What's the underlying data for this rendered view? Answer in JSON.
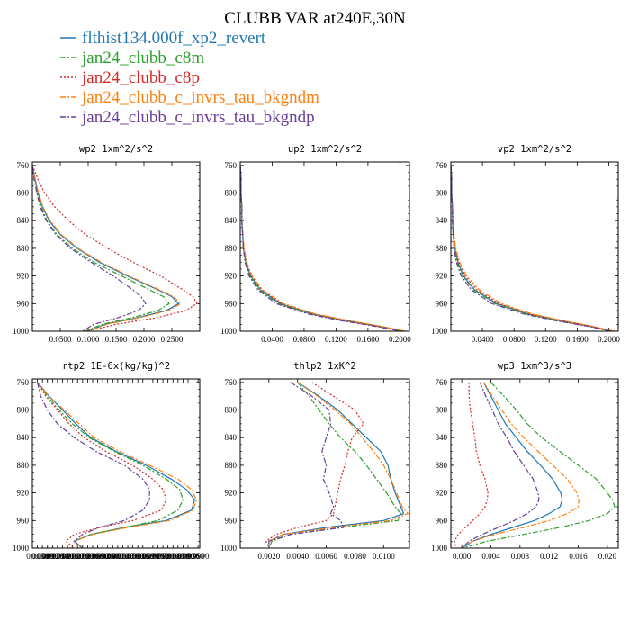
{
  "figure": {
    "title": "CLUBB VAR at240E,30N",
    "legend": [
      {
        "label": "flthist134.000f_xp2_revert",
        "color": "#1f77b4",
        "dash": ""
      },
      {
        "label": "jan24_clubb_c8m",
        "color": "#2ca02c",
        "dash": "6,2,2,2"
      },
      {
        "label": "jan24_clubb_c8p",
        "color": "#d62728",
        "dash": "2,2"
      },
      {
        "label": "jan24_clubb_c_invrs_tau_bkgndm",
        "color": "#ff7f0e",
        "dash": "6,2,2,2"
      },
      {
        "label": "jan24_clubb_c_invrs_tau_bkgndp",
        "color": "#6a3d9a",
        "dash": "6,2,2,2"
      }
    ]
  },
  "chart_data": [
    {
      "type": "line",
      "title": "wp2  1xm^2/s^2",
      "x_ticks": [
        "0.0500",
        "0.1000",
        "0.1500",
        "0.2000",
        "0.2500"
      ],
      "x_tick_values": [
        0.05,
        0.1,
        0.15,
        0.2,
        0.25
      ],
      "xlim": [
        0.0,
        0.3
      ],
      "y_ticks": [
        "760",
        "800",
        "840",
        "880",
        "920",
        "960",
        "1000"
      ],
      "ylim": [
        1000,
        755
      ],
      "y": [
        760,
        780,
        800,
        820,
        840,
        860,
        880,
        900,
        920,
        940,
        950,
        960,
        970,
        980,
        990,
        1000
      ],
      "series": [
        {
          "name": "flthist134.000f_xp2_revert",
          "x": [
            0.0,
            0.005,
            0.01,
            0.018,
            0.03,
            0.05,
            0.08,
            0.12,
            0.17,
            0.225,
            0.25,
            0.262,
            0.24,
            0.19,
            0.13,
            0.1
          ]
        },
        {
          "name": "jan24_clubb_c8m",
          "x": [
            0.0,
            0.004,
            0.009,
            0.016,
            0.026,
            0.044,
            0.072,
            0.11,
            0.16,
            0.21,
            0.235,
            0.245,
            0.225,
            0.18,
            0.125,
            0.095
          ]
        },
        {
          "name": "jan24_clubb_c8p",
          "x": [
            0.0,
            0.01,
            0.022,
            0.04,
            0.065,
            0.095,
            0.135,
            0.18,
            0.23,
            0.27,
            0.288,
            0.295,
            0.275,
            0.225,
            0.15,
            0.1
          ]
        },
        {
          "name": "jan24_clubb_c_invrs_tau_bkgndm",
          "x": [
            0.0,
            0.005,
            0.011,
            0.019,
            0.032,
            0.052,
            0.082,
            0.123,
            0.173,
            0.228,
            0.253,
            0.266,
            0.244,
            0.194,
            0.133,
            0.1
          ]
        },
        {
          "name": "jan24_clubb_c_invrs_tau_bkgndp",
          "x": [
            0.0,
            0.003,
            0.008,
            0.014,
            0.025,
            0.042,
            0.068,
            0.105,
            0.145,
            0.18,
            0.195,
            0.203,
            0.19,
            0.155,
            0.11,
            0.09
          ]
        }
      ]
    },
    {
      "type": "line",
      "title": "up2  1xm^2/s^2",
      "x_ticks": [
        "0.0400",
        "0.0800",
        "0.1200",
        "0.1600",
        "0.2000"
      ],
      "x_tick_values": [
        0.04,
        0.08,
        0.12,
        0.16,
        0.2
      ],
      "xlim": [
        0.0,
        0.212
      ],
      "y_ticks": [
        "760",
        "800",
        "840",
        "880",
        "920",
        "960",
        "1000"
      ],
      "ylim": [
        1000,
        755
      ],
      "y": [
        760,
        780,
        800,
        820,
        840,
        860,
        880,
        900,
        920,
        940,
        960,
        975,
        985,
        993,
        1000
      ],
      "series": [
        {
          "name": "flthist134.000f_xp2_revert",
          "x": [
            0.0,
            0.001,
            0.001,
            0.002,
            0.002,
            0.003,
            0.004,
            0.007,
            0.013,
            0.025,
            0.05,
            0.09,
            0.135,
            0.175,
            0.205
          ]
        },
        {
          "name": "jan24_clubb_c8m",
          "x": [
            0.0,
            0.001,
            0.001,
            0.002,
            0.002,
            0.003,
            0.004,
            0.007,
            0.012,
            0.024,
            0.048,
            0.088,
            0.132,
            0.172,
            0.203
          ]
        },
        {
          "name": "jan24_clubb_c8p",
          "x": [
            0.0,
            0.001,
            0.001,
            0.002,
            0.002,
            0.003,
            0.004,
            0.008,
            0.014,
            0.027,
            0.052,
            0.092,
            0.137,
            0.176,
            0.206
          ]
        },
        {
          "name": "jan24_clubb_c_invrs_tau_bkgndm",
          "x": [
            0.0,
            0.001,
            0.001,
            0.002,
            0.002,
            0.003,
            0.005,
            0.008,
            0.015,
            0.028,
            0.054,
            0.094,
            0.138,
            0.177,
            0.207
          ]
        },
        {
          "name": "jan24_clubb_c_invrs_tau_bkgndp",
          "x": [
            0.0,
            0.001,
            0.001,
            0.002,
            0.002,
            0.003,
            0.004,
            0.006,
            0.011,
            0.022,
            0.045,
            0.085,
            0.128,
            0.17,
            0.201
          ]
        }
      ]
    },
    {
      "type": "line",
      "title": "vp2  1xm^2/s^2",
      "x_ticks": [
        "0.0400",
        "0.0800",
        "0.1200",
        "0.1600",
        "0.2000"
      ],
      "x_tick_values": [
        0.04,
        0.08,
        0.12,
        0.16,
        0.2
      ],
      "xlim": [
        0.0,
        0.212
      ],
      "y_ticks": [
        "760",
        "800",
        "840",
        "880",
        "920",
        "960",
        "1000"
      ],
      "ylim": [
        1000,
        755
      ],
      "y": [
        760,
        780,
        800,
        820,
        840,
        860,
        880,
        900,
        920,
        940,
        960,
        975,
        985,
        993,
        1000
      ],
      "series": [
        {
          "name": "flthist134.000f_xp2_revert",
          "x": [
            0.0,
            0.001,
            0.001,
            0.002,
            0.002,
            0.003,
            0.005,
            0.009,
            0.016,
            0.03,
            0.058,
            0.098,
            0.14,
            0.178,
            0.205
          ]
        },
        {
          "name": "jan24_clubb_c8m",
          "x": [
            0.0,
            0.001,
            0.001,
            0.002,
            0.002,
            0.003,
            0.005,
            0.008,
            0.015,
            0.029,
            0.056,
            0.096,
            0.138,
            0.176,
            0.204
          ]
        },
        {
          "name": "jan24_clubb_c8p",
          "x": [
            0.0,
            0.001,
            0.001,
            0.002,
            0.003,
            0.004,
            0.006,
            0.01,
            0.018,
            0.033,
            0.061,
            0.1,
            0.142,
            0.179,
            0.206
          ]
        },
        {
          "name": "jan24_clubb_c_invrs_tau_bkgndm",
          "x": [
            0.0,
            0.001,
            0.001,
            0.002,
            0.003,
            0.004,
            0.006,
            0.011,
            0.02,
            0.036,
            0.064,
            0.103,
            0.144,
            0.18,
            0.207
          ]
        },
        {
          "name": "jan24_clubb_c_invrs_tau_bkgndp",
          "x": [
            0.0,
            0.001,
            0.001,
            0.002,
            0.002,
            0.003,
            0.004,
            0.007,
            0.013,
            0.026,
            0.052,
            0.092,
            0.134,
            0.174,
            0.202
          ]
        }
      ]
    },
    {
      "type": "line",
      "title": "rtp2  1E-6x(kg/kg)^2",
      "x_ticks": [
        "0.0030",
        "0.0060",
        "0.0090",
        "0.0120",
        "0.0150",
        "0.0180",
        "0.0210",
        "0.0240",
        "0.0270",
        "0.0300",
        "0.0330",
        "0.0360",
        "0.0390",
        "0.0420",
        "0.0450",
        "0.0480",
        "0.0510",
        "0.0540",
        "0.0570",
        "0.0600",
        "0.0630",
        "0.0660",
        "0.0690",
        "0.0720",
        "0.0750",
        "0.0780",
        "0.0810",
        "0.0840",
        "0.0870",
        "0.0900",
        "0.0930",
        "0.0960",
        "0.0990"
      ],
      "x_tick_values": [
        0.003,
        0.006,
        0.009,
        0.012,
        0.015,
        0.018,
        0.021,
        0.024,
        0.027,
        0.03,
        0.033,
        0.036,
        0.039,
        0.042,
        0.045,
        0.048,
        0.051,
        0.054,
        0.057,
        0.06,
        0.063,
        0.066,
        0.069,
        0.072,
        0.075,
        0.078,
        0.081,
        0.084,
        0.087,
        0.09,
        0.093,
        0.096,
        0.099
      ],
      "xlim": [
        0.0,
        0.1
      ],
      "y_ticks": [
        "760",
        "800",
        "840",
        "880",
        "920",
        "960",
        "1000"
      ],
      "ylim": [
        1000,
        755
      ],
      "y": [
        760,
        780,
        800,
        820,
        840,
        860,
        880,
        900,
        915,
        930,
        945,
        960,
        970,
        980,
        990,
        1000
      ],
      "series": [
        {
          "name": "flthist134.000f_xp2_revert",
          "x": [
            0.003,
            0.01,
            0.018,
            0.026,
            0.035,
            0.05,
            0.068,
            0.083,
            0.092,
            0.097,
            0.095,
            0.08,
            0.055,
            0.035,
            0.025,
            0.03
          ]
        },
        {
          "name": "jan24_clubb_c8m",
          "x": [
            0.003,
            0.009,
            0.016,
            0.024,
            0.034,
            0.049,
            0.066,
            0.08,
            0.088,
            0.09,
            0.087,
            0.075,
            0.055,
            0.035,
            0.025,
            0.03
          ]
        },
        {
          "name": "jan24_clubb_c8p",
          "x": [
            0.003,
            0.008,
            0.015,
            0.022,
            0.031,
            0.044,
            0.06,
            0.072,
            0.078,
            0.08,
            0.077,
            0.06,
            0.04,
            0.025,
            0.02,
            0.025
          ]
        },
        {
          "name": "jan24_clubb_c_invrs_tau_bkgndm",
          "x": [
            0.003,
            0.01,
            0.019,
            0.028,
            0.037,
            0.052,
            0.07,
            0.087,
            0.095,
            0.098,
            0.096,
            0.082,
            0.057,
            0.036,
            0.025,
            0.03
          ]
        },
        {
          "name": "jan24_clubb_c_invrs_tau_bkgndp",
          "x": [
            0.003,
            0.005,
            0.009,
            0.015,
            0.025,
            0.038,
            0.055,
            0.066,
            0.07,
            0.07,
            0.066,
            0.055,
            0.04,
            0.03,
            0.025,
            0.03
          ]
        }
      ]
    },
    {
      "type": "line",
      "title": "thlp2  1xK^2",
      "x_ticks": [
        "0.0020",
        "0.0040",
        "0.0060",
        "0.0080",
        "0.0100"
      ],
      "x_tick_values": [
        0.002,
        0.004,
        0.006,
        0.008,
        0.01
      ],
      "xlim": [
        0.0,
        0.0118
      ],
      "y_ticks": [
        "760",
        "800",
        "840",
        "880",
        "920",
        "960",
        "1000"
      ],
      "ylim": [
        1000,
        755
      ],
      "y": [
        760,
        780,
        800,
        820,
        840,
        860,
        880,
        900,
        920,
        940,
        950,
        960,
        970,
        980,
        990,
        1000
      ],
      "series": [
        {
          "name": "flthist134.000f_xp2_revert",
          "x": [
            0.004,
            0.0055,
            0.0068,
            0.0078,
            0.0088,
            0.0098,
            0.0103,
            0.0105,
            0.0108,
            0.0112,
            0.0114,
            0.01,
            0.006,
            0.003,
            0.002,
            0.002
          ]
        },
        {
          "name": "jan24_clubb_c8m",
          "x": [
            0.004,
            0.0048,
            0.0055,
            0.0062,
            0.007,
            0.008,
            0.0088,
            0.0095,
            0.0102,
            0.0108,
            0.0112,
            0.011,
            0.007,
            0.0035,
            0.0022,
            0.002
          ]
        },
        {
          "name": "jan24_clubb_c8p",
          "x": [
            0.005,
            0.0065,
            0.008,
            0.0086,
            0.0078,
            0.0075,
            0.0073,
            0.007,
            0.0068,
            0.0066,
            0.0065,
            0.006,
            0.004,
            0.0025,
            0.0018,
            0.002
          ]
        },
        {
          "name": "jan24_clubb_c_invrs_tau_bkgndm",
          "x": [
            0.004,
            0.0054,
            0.0066,
            0.0077,
            0.0085,
            0.0093,
            0.01,
            0.0105,
            0.0109,
            0.0113,
            0.0117,
            0.0105,
            0.0065,
            0.003,
            0.002,
            0.002
          ]
        },
        {
          "name": "jan24_clubb_c_invrs_tau_bkgndp",
          "x": [
            0.0035,
            0.005,
            0.0062,
            0.0063,
            0.006,
            0.0057,
            0.006,
            0.0058,
            0.0062,
            0.0065,
            0.0063,
            0.007,
            0.0072,
            0.0035,
            0.002,
            0.002
          ]
        }
      ]
    },
    {
      "type": "line",
      "title": "wp3  1xm^3/s^3",
      "x_ticks": [
        "0.000",
        "0.004",
        "0.008",
        "0.012",
        "0.016",
        "0.020"
      ],
      "x_tick_values": [
        0.0,
        0.004,
        0.008,
        0.012,
        0.016,
        0.02
      ],
      "xlim": [
        -0.0015,
        0.0215
      ],
      "y_ticks": [
        "760",
        "800",
        "840",
        "880",
        "920",
        "960",
        "1000"
      ],
      "ylim": [
        1000,
        755
      ],
      "y": [
        760,
        780,
        800,
        820,
        840,
        860,
        880,
        900,
        920,
        930,
        940,
        950,
        960,
        970,
        980,
        990,
        1000
      ],
      "series": [
        {
          "name": "flthist134.000f_xp2_revert",
          "x": [
            0.003,
            0.004,
            0.005,
            0.006,
            0.0075,
            0.009,
            0.0108,
            0.0125,
            0.0136,
            0.0138,
            0.0135,
            0.012,
            0.01,
            0.007,
            0.004,
            0.0015,
            0.0
          ]
        },
        {
          "name": "jan24_clubb_c8m",
          "x": [
            0.004,
            0.0058,
            0.0075,
            0.009,
            0.011,
            0.0135,
            0.016,
            0.0185,
            0.02,
            0.0207,
            0.021,
            0.02,
            0.0175,
            0.0135,
            0.0085,
            0.0035,
            0.0
          ]
        },
        {
          "name": "jan24_clubb_c8p",
          "x": [
            0.001,
            0.001,
            0.0012,
            0.0015,
            0.0018,
            0.002,
            0.0025,
            0.0032,
            0.0036,
            0.0035,
            0.0032,
            0.0025,
            0.0015,
            0.0005,
            -0.0005,
            -0.001,
            -0.0008
          ]
        },
        {
          "name": "jan24_clubb_c_invrs_tau_bkgndm",
          "x": [
            0.003,
            0.0042,
            0.0055,
            0.0068,
            0.0085,
            0.0105,
            0.0125,
            0.0145,
            0.0158,
            0.0161,
            0.016,
            0.0145,
            0.012,
            0.0085,
            0.0045,
            0.0015,
            0.0
          ]
        },
        {
          "name": "jan24_clubb_c_invrs_tau_bkgndp",
          "x": [
            0.0025,
            0.0033,
            0.0042,
            0.005,
            0.0062,
            0.0072,
            0.0085,
            0.0098,
            0.0105,
            0.0106,
            0.0102,
            0.009,
            0.0072,
            0.005,
            0.0028,
            0.001,
            0.0
          ]
        }
      ]
    }
  ]
}
